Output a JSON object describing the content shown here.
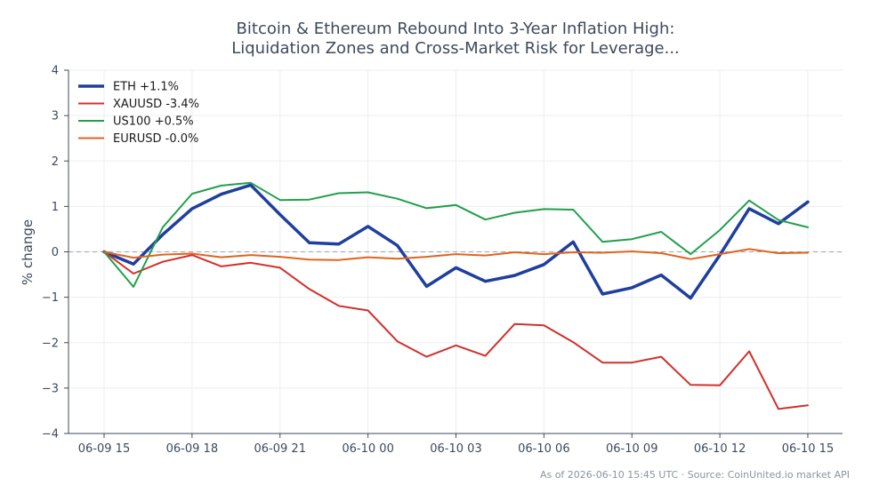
{
  "chart_data": {
    "type": "line",
    "title_line1": "Bitcoin & Ethereum Rebound Into 3-Year Inflation High:",
    "title_line2": "Liquidation Zones and Cross-Market Risk for Leverage...",
    "ylabel": "% change",
    "xlabel": "",
    "ylim": [
      -4,
      4
    ],
    "yticks": [
      -4,
      -3,
      -2,
      -1,
      0,
      1,
      2,
      3,
      4
    ],
    "ytick_labels": [
      "−4",
      "−3",
      "−2",
      "−1",
      "0",
      "1",
      "2",
      "3",
      "4"
    ],
    "x_ticks": [
      {
        "i": 0,
        "label": "06-09 15"
      },
      {
        "i": 3,
        "label": "06-09 18"
      },
      {
        "i": 6,
        "label": "06-09 21"
      },
      {
        "i": 9,
        "label": "06-10 00"
      },
      {
        "i": 12,
        "label": "06-10 03"
      },
      {
        "i": 15,
        "label": "06-10 06"
      },
      {
        "i": 18,
        "label": "06-10 09"
      },
      {
        "i": 21,
        "label": "06-10 12"
      },
      {
        "i": 24,
        "label": "06-10 15"
      }
    ],
    "baseline": 0,
    "grid": true,
    "legend_position": "top-left",
    "series": [
      {
        "name": "ETH +1.1%",
        "color": "#1f3f9e",
        "width": 3.5,
        "values": [
          0.0,
          -0.27,
          0.38,
          0.95,
          1.27,
          1.47,
          0.82,
          0.2,
          0.17,
          0.56,
          0.14,
          -0.76,
          -0.35,
          -0.65,
          -0.52,
          -0.28,
          0.22,
          -0.93,
          -0.79,
          -0.51,
          -1.02,
          -0.07,
          0.95,
          0.62,
          1.1
        ]
      },
      {
        "name": "XAUUSD -3.4%",
        "color": "#d0302b",
        "width": 2,
        "values": [
          0.0,
          -0.48,
          -0.22,
          -0.07,
          -0.32,
          -0.24,
          -0.35,
          -0.82,
          -1.19,
          -1.29,
          -1.97,
          -2.31,
          -2.06,
          -2.29,
          -1.59,
          -1.62,
          -1.99,
          -2.44,
          -2.44,
          -2.31,
          -2.93,
          -2.94,
          -2.19,
          -3.46,
          -3.38
        ]
      },
      {
        "name": "US100 +0.5%",
        "color": "#21a04a",
        "width": 2,
        "values": [
          0.0,
          -0.77,
          0.54,
          1.28,
          1.46,
          1.52,
          1.14,
          1.15,
          1.29,
          1.31,
          1.17,
          0.96,
          1.03,
          0.71,
          0.86,
          0.94,
          0.93,
          0.22,
          0.28,
          0.44,
          -0.05,
          0.48,
          1.13,
          0.7,
          0.54
        ]
      },
      {
        "name": "EURUSD -0.0%",
        "color": "#e0651e",
        "width": 2,
        "values": [
          0.0,
          -0.13,
          -0.06,
          -0.04,
          -0.12,
          -0.07,
          -0.11,
          -0.17,
          -0.18,
          -0.12,
          -0.15,
          -0.11,
          -0.05,
          -0.08,
          -0.01,
          -0.05,
          -0.01,
          -0.02,
          0.01,
          -0.03,
          -0.16,
          -0.05,
          0.06,
          -0.03,
          -0.02
        ]
      }
    ]
  },
  "footer_note": "As of 2026-06-10 15:45 UTC · Source: CoinUnited.io market API",
  "colors": {
    "axis": "#3d4a5c",
    "grid": "#ebedf0",
    "baseline": "#9aa3b0",
    "text": "#3d4a5c",
    "footer": "#8a93a0"
  }
}
